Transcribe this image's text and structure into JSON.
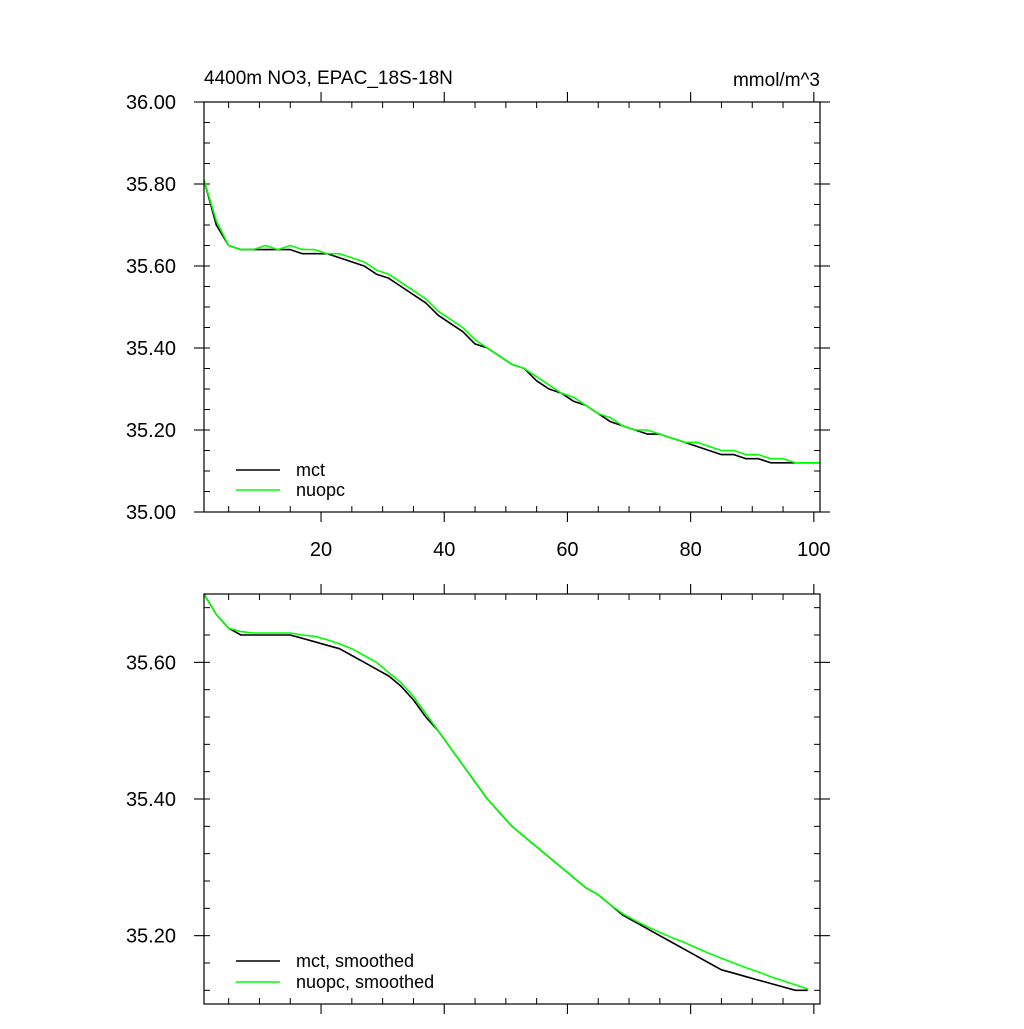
{
  "colors": {
    "mct": "#000000",
    "nuopc": "#00ff00",
    "frame": "#000000"
  },
  "chart_data": [
    {
      "type": "line",
      "title": "4400m NO3, EPAC_18S-18N",
      "units": "mmol/m^3",
      "xlabel": "",
      "ylabel": "",
      "xlim": [
        1,
        101
      ],
      "ylim": [
        35.0,
        36.0
      ],
      "xticks": [
        20,
        40,
        60,
        80,
        100
      ],
      "xtick_labels": [
        "20",
        "40",
        "60",
        "80",
        "100"
      ],
      "yticks": [
        35.0,
        35.2,
        35.4,
        35.6,
        35.8,
        36.0
      ],
      "ytick_labels": [
        "35.00",
        "35.20",
        "35.40",
        "35.60",
        "35.80",
        "36.00"
      ],
      "legend_position": "bottom-left",
      "series": [
        {
          "name": "mct",
          "color": "#000000",
          "x": [
            1,
            3,
            5,
            7,
            9,
            11,
            13,
            15,
            17,
            19,
            21,
            23,
            25,
            27,
            29,
            31,
            33,
            35,
            37,
            39,
            41,
            43,
            45,
            47,
            49,
            51,
            53,
            55,
            57,
            59,
            61,
            63,
            65,
            67,
            69,
            71,
            73,
            75,
            77,
            79,
            81,
            83,
            85,
            87,
            89,
            91,
            93,
            95,
            97,
            99,
            101
          ],
          "y": [
            35.81,
            35.7,
            35.65,
            35.64,
            35.64,
            35.64,
            35.64,
            35.64,
            35.63,
            35.63,
            35.63,
            35.62,
            35.61,
            35.6,
            35.58,
            35.57,
            35.55,
            35.53,
            35.51,
            35.48,
            35.46,
            35.44,
            35.41,
            35.4,
            35.38,
            35.36,
            35.35,
            35.32,
            35.3,
            35.29,
            35.27,
            35.26,
            35.24,
            35.22,
            35.21,
            35.2,
            35.19,
            35.19,
            35.18,
            35.17,
            35.16,
            35.15,
            35.14,
            35.14,
            35.13,
            35.13,
            35.12,
            35.12,
            35.12,
            35.12,
            35.12
          ]
        },
        {
          "name": "nuopc",
          "color": "#00ff00",
          "x": [
            1,
            3,
            5,
            7,
            9,
            11,
            13,
            15,
            17,
            19,
            21,
            23,
            25,
            27,
            29,
            31,
            33,
            35,
            37,
            39,
            41,
            43,
            45,
            47,
            49,
            51,
            53,
            55,
            57,
            59,
            61,
            63,
            65,
            67,
            69,
            71,
            73,
            75,
            77,
            79,
            81,
            83,
            85,
            87,
            89,
            91,
            93,
            95,
            97,
            99,
            101
          ],
          "y": [
            35.81,
            35.71,
            35.65,
            35.64,
            35.64,
            35.65,
            35.64,
            35.65,
            35.64,
            35.64,
            35.63,
            35.63,
            35.62,
            35.61,
            35.59,
            35.58,
            35.56,
            35.54,
            35.52,
            35.49,
            35.47,
            35.45,
            35.42,
            35.4,
            35.38,
            35.36,
            35.35,
            35.33,
            35.31,
            35.29,
            35.28,
            35.26,
            35.24,
            35.23,
            35.21,
            35.2,
            35.2,
            35.19,
            35.18,
            35.17,
            35.17,
            35.16,
            35.15,
            35.15,
            35.14,
            35.14,
            35.13,
            35.13,
            35.12,
            35.12,
            35.12
          ]
        }
      ]
    },
    {
      "type": "line",
      "title": "",
      "xlim": [
        1,
        101
      ],
      "ylim": [
        35.1,
        35.7
      ],
      "xticks": [
        20,
        40,
        60,
        80,
        100
      ],
      "xtick_labels": [],
      "yticks": [
        35.2,
        35.4,
        35.6
      ],
      "ytick_labels": [
        "35.20",
        "35.40",
        "35.60"
      ],
      "legend_position": "bottom-left",
      "series": [
        {
          "name": "mct, smoothed",
          "color": "#000000",
          "x": [
            1,
            3,
            5,
            7,
            9,
            11,
            13,
            15,
            17,
            19,
            21,
            23,
            25,
            27,
            29,
            31,
            33,
            35,
            37,
            39,
            41,
            43,
            45,
            47,
            49,
            51,
            53,
            55,
            57,
            59,
            61,
            63,
            65,
            67,
            69,
            71,
            73,
            75,
            77,
            79,
            81,
            83,
            85,
            87,
            89,
            91,
            93,
            95,
            97,
            99
          ],
          "y": [
            35.7,
            35.67,
            35.65,
            35.64,
            35.64,
            35.64,
            35.64,
            35.64,
            35.635,
            35.63,
            35.625,
            35.62,
            35.61,
            35.6,
            35.59,
            35.58,
            35.565,
            35.545,
            35.52,
            35.5,
            35.475,
            35.45,
            35.425,
            35.4,
            35.38,
            35.36,
            35.345,
            35.33,
            35.315,
            35.3,
            35.285,
            35.27,
            35.26,
            35.245,
            35.23,
            35.22,
            35.21,
            35.2,
            35.19,
            35.18,
            35.17,
            35.16,
            35.15,
            35.145,
            35.14,
            35.135,
            35.13,
            35.125,
            35.12,
            35.12
          ]
        },
        {
          "name": "nuopc, smoothed",
          "color": "#00ff00",
          "x": [
            1,
            3,
            5,
            7,
            9,
            11,
            13,
            15,
            17,
            19,
            21,
            23,
            25,
            27,
            29,
            31,
            33,
            35,
            37,
            39,
            41,
            43,
            45,
            47,
            49,
            51,
            53,
            55,
            57,
            59,
            61,
            63,
            65,
            67,
            69,
            71,
            73,
            75,
            77,
            79,
            81,
            83,
            85,
            87,
            89,
            91,
            93,
            95,
            97,
            99
          ],
          "y": [
            35.7,
            35.67,
            35.65,
            35.645,
            35.643,
            35.643,
            35.643,
            35.643,
            35.64,
            35.638,
            35.633,
            35.627,
            35.62,
            35.61,
            35.6,
            35.585,
            35.57,
            35.55,
            35.525,
            35.5,
            35.475,
            35.45,
            35.425,
            35.4,
            35.38,
            35.36,
            35.345,
            35.33,
            35.315,
            35.3,
            35.285,
            35.27,
            35.26,
            35.245,
            35.232,
            35.222,
            35.213,
            35.205,
            35.197,
            35.19,
            35.182,
            35.174,
            35.167,
            35.16,
            35.153,
            35.147,
            35.14,
            35.134,
            35.128,
            35.122
          ]
        }
      ]
    }
  ]
}
